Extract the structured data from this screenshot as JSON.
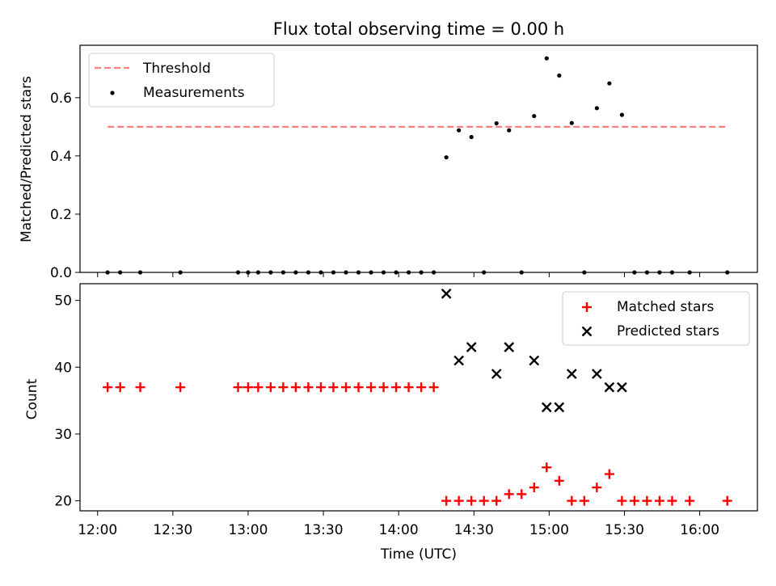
{
  "chart_data": [
    {
      "type": "scatter",
      "title": "Flux total observing time = 0.00 h",
      "xlabel": "",
      "ylabel": "Matched/Predicted stars",
      "xlim": [
        "11:53",
        "16:23"
      ],
      "ylim": [
        0,
        0.78
      ],
      "yticks": [
        0.0,
        0.2,
        0.4,
        0.6
      ],
      "ytick_labels": [
        "0.0",
        "0.2",
        "0.4",
        "0.6"
      ],
      "legend": {
        "position": "top-left"
      },
      "series": [
        {
          "name": "Threshold",
          "kind": "dashed-line",
          "color": "#ff7f7f",
          "x": [
            "12:04",
            "16:11"
          ],
          "y": [
            0.5,
            0.5
          ]
        },
        {
          "name": "Measurements",
          "kind": "points",
          "color": "#000000",
          "points": [
            [
              "12:04",
              0
            ],
            [
              "12:09",
              0
            ],
            [
              "12:17",
              0
            ],
            [
              "12:33",
              0
            ],
            [
              "12:56",
              0
            ],
            [
              "13:00",
              0
            ],
            [
              "13:04",
              0
            ],
            [
              "13:09",
              0
            ],
            [
              "13:14",
              0
            ],
            [
              "13:19",
              0
            ],
            [
              "13:24",
              0
            ],
            [
              "13:29",
              0
            ],
            [
              "13:34",
              0
            ],
            [
              "13:39",
              0
            ],
            [
              "13:44",
              0
            ],
            [
              "13:49",
              0
            ],
            [
              "13:54",
              0
            ],
            [
              "13:59",
              0
            ],
            [
              "14:04",
              0
            ],
            [
              "14:09",
              0
            ],
            [
              "14:14",
              0
            ],
            [
              "14:19",
              0.395
            ],
            [
              "14:24",
              0.488
            ],
            [
              "14:29",
              0.465
            ],
            [
              "14:34",
              0
            ],
            [
              "14:39",
              0.512
            ],
            [
              "14:44",
              0.488
            ],
            [
              "14:49",
              0
            ],
            [
              "14:54",
              0.537
            ],
            [
              "14:59",
              0.735
            ],
            [
              "15:04",
              0.676
            ],
            [
              "15:09",
              0.513
            ],
            [
              "15:14",
              0
            ],
            [
              "15:19",
              0.564
            ],
            [
              "15:24",
              0.649
            ],
            [
              "15:29",
              0.541
            ],
            [
              "15:34",
              0
            ],
            [
              "15:39",
              0
            ],
            [
              "15:44",
              0
            ],
            [
              "15:49",
              0
            ],
            [
              "15:56",
              0
            ],
            [
              "16:11",
              0
            ]
          ]
        }
      ]
    },
    {
      "type": "scatter",
      "title": "",
      "xlabel": "Time (UTC)",
      "ylabel": "Count",
      "xlim": [
        "11:53",
        "16:23"
      ],
      "ylim": [
        18.5,
        52.5
      ],
      "xticks": [
        "12:00",
        "12:30",
        "13:00",
        "13:30",
        "14:00",
        "14:30",
        "15:00",
        "15:30",
        "16:00"
      ],
      "yticks": [
        20,
        30,
        40,
        50
      ],
      "ytick_labels": [
        "20",
        "30",
        "40",
        "50"
      ],
      "legend": {
        "position": "top-right"
      },
      "series": [
        {
          "name": "Matched stars",
          "kind": "plus",
          "color": "#ff0000",
          "points": [
            [
              "12:04",
              37
            ],
            [
              "12:09",
              37
            ],
            [
              "12:17",
              37
            ],
            [
              "12:33",
              37
            ],
            [
              "12:56",
              37
            ],
            [
              "13:00",
              37
            ],
            [
              "13:04",
              37
            ],
            [
              "13:09",
              37
            ],
            [
              "13:14",
              37
            ],
            [
              "13:19",
              37
            ],
            [
              "13:24",
              37
            ],
            [
              "13:29",
              37
            ],
            [
              "13:34",
              37
            ],
            [
              "13:39",
              37
            ],
            [
              "13:44",
              37
            ],
            [
              "13:49",
              37
            ],
            [
              "13:54",
              37
            ],
            [
              "13:59",
              37
            ],
            [
              "14:04",
              37
            ],
            [
              "14:09",
              37
            ],
            [
              "14:14",
              37
            ],
            [
              "14:19",
              20
            ],
            [
              "14:24",
              20
            ],
            [
              "14:29",
              20
            ],
            [
              "14:34",
              20
            ],
            [
              "14:39",
              20
            ],
            [
              "14:44",
              21
            ],
            [
              "14:49",
              21
            ],
            [
              "14:54",
              22
            ],
            [
              "14:59",
              25
            ],
            [
              "15:04",
              23
            ],
            [
              "15:09",
              20
            ],
            [
              "15:14",
              20
            ],
            [
              "15:19",
              22
            ],
            [
              "15:24",
              24
            ],
            [
              "15:29",
              20
            ],
            [
              "15:34",
              20
            ],
            [
              "15:39",
              20
            ],
            [
              "15:44",
              20
            ],
            [
              "15:49",
              20
            ],
            [
              "15:56",
              20
            ],
            [
              "16:11",
              20
            ]
          ]
        },
        {
          "name": "Predicted stars",
          "kind": "x",
          "color": "#000000",
          "points": [
            [
              "14:19",
              51
            ],
            [
              "14:24",
              41
            ],
            [
              "14:29",
              43
            ],
            [
              "14:39",
              39
            ],
            [
              "14:44",
              43
            ],
            [
              "14:54",
              41
            ],
            [
              "14:59",
              34
            ],
            [
              "15:04",
              34
            ],
            [
              "15:09",
              39
            ],
            [
              "15:19",
              39
            ],
            [
              "15:24",
              37
            ],
            [
              "15:29",
              37
            ]
          ]
        }
      ]
    }
  ]
}
